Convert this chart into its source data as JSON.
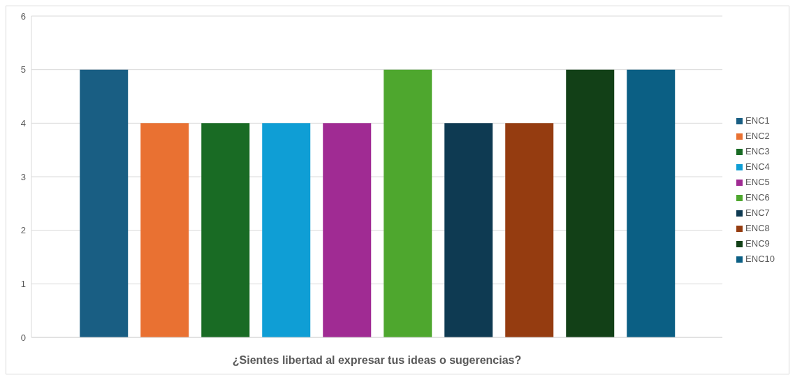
{
  "chart_data": {
    "type": "bar",
    "xlabel": "¿Sientes libertad al expresar tus ideas o sugerencias?",
    "categories": [
      null
    ],
    "series": [
      {
        "name": "ENC1",
        "color": "#195e83",
        "values": [
          5
        ]
      },
      {
        "name": "ENC2",
        "color": "#e97132",
        "values": [
          4
        ]
      },
      {
        "name": "ENC3",
        "color": "#196b24",
        "values": [
          4
        ]
      },
      {
        "name": "ENC4",
        "color": "#0f9ed5",
        "values": [
          4
        ]
      },
      {
        "name": "ENC5",
        "color": "#a02b93",
        "values": [
          4
        ]
      },
      {
        "name": "ENC6",
        "color": "#4ea72e",
        "values": [
          5
        ]
      },
      {
        "name": "ENC7",
        "color": "#0e3a52",
        "values": [
          4
        ]
      },
      {
        "name": "ENC8",
        "color": "#953c10",
        "values": [
          4
        ]
      },
      {
        "name": "ENC9",
        "color": "#124017",
        "values": [
          5
        ]
      },
      {
        "name": "ENC10",
        "color": "#0b5f84",
        "values": [
          5
        ]
      }
    ],
    "ylim": [
      0,
      6
    ],
    "yticks": [
      0,
      1,
      2,
      3,
      4,
      5,
      6
    ],
    "grid": "y",
    "legend": "right"
  }
}
